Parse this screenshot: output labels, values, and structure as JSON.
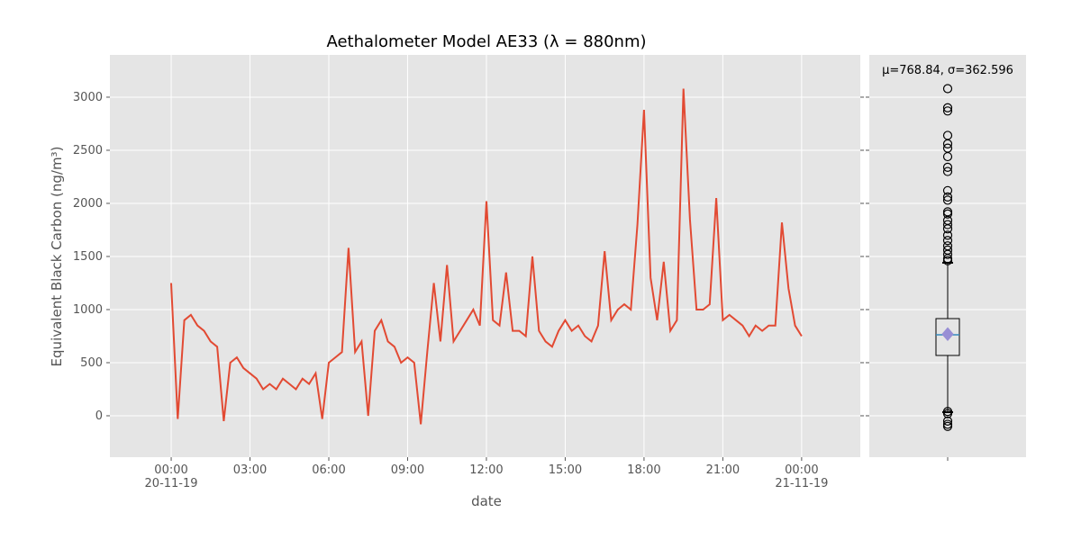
{
  "chart_data": [
    {
      "type": "line",
      "title": "Aethalometer Model AE33 (λ = 880nm)",
      "xlabel": "date",
      "ylabel": "Equivalent Black Carbon (ng/m³)",
      "color": "#e24a33",
      "grid": true,
      "xlim": [
        "2019-11-19 21:40",
        "2019-11-21 02:14"
      ],
      "xticks": [
        {
          "value": "2019-11-20 00:00",
          "label": "00:00\n20-11-19"
        },
        {
          "value": "2019-11-20 03:00",
          "label": "03:00"
        },
        {
          "value": "2019-11-20 06:00",
          "label": "06:00"
        },
        {
          "value": "2019-11-20 09:00",
          "label": "09:00"
        },
        {
          "value": "2019-11-20 12:00",
          "label": "12:00"
        },
        {
          "value": "2019-11-20 15:00",
          "label": "15:00"
        },
        {
          "value": "2019-11-20 18:00",
          "label": "18:00"
        },
        {
          "value": "2019-11-20 21:00",
          "label": "21:00"
        },
        {
          "value": "2019-11-21 00:00",
          "label": "00:00\n21-11-19"
        }
      ],
      "ylim": [
        -390,
        3398
      ],
      "yticks": [
        0,
        500,
        1000,
        1500,
        2000,
        2500,
        3000
      ],
      "x": [
        "2019-11-20 00:00",
        "2019-11-20 00:15",
        "2019-11-20 00:30",
        "2019-11-20 00:45",
        "2019-11-20 01:00",
        "2019-11-20 01:15",
        "2019-11-20 01:30",
        "2019-11-20 01:45",
        "2019-11-20 02:00",
        "2019-11-20 02:15",
        "2019-11-20 02:30",
        "2019-11-20 02:45",
        "2019-11-20 03:00",
        "2019-11-20 03:15",
        "2019-11-20 03:30",
        "2019-11-20 03:45",
        "2019-11-20 04:00",
        "2019-11-20 04:15",
        "2019-11-20 04:30",
        "2019-11-20 04:45",
        "2019-11-20 05:00",
        "2019-11-20 05:15",
        "2019-11-20 05:30",
        "2019-11-20 05:45",
        "2019-11-20 06:00",
        "2019-11-20 06:15",
        "2019-11-20 06:30",
        "2019-11-20 06:45",
        "2019-11-20 07:00",
        "2019-11-20 07:15",
        "2019-11-20 07:30",
        "2019-11-20 07:45",
        "2019-11-20 08:00",
        "2019-11-20 08:15",
        "2019-11-20 08:30",
        "2019-11-20 08:45",
        "2019-11-20 09:00",
        "2019-11-20 09:15",
        "2019-11-20 09:30",
        "2019-11-20 09:45",
        "2019-11-20 10:00",
        "2019-11-20 10:15",
        "2019-11-20 10:30",
        "2019-11-20 10:45",
        "2019-11-20 11:00",
        "2019-11-20 11:15",
        "2019-11-20 11:30",
        "2019-11-20 11:45",
        "2019-11-20 12:00",
        "2019-11-20 12:15",
        "2019-11-20 12:30",
        "2019-11-20 12:45",
        "2019-11-20 13:00",
        "2019-11-20 13:15",
        "2019-11-20 13:30",
        "2019-11-20 13:45",
        "2019-11-20 14:00",
        "2019-11-20 14:15",
        "2019-11-20 14:30",
        "2019-11-20 14:45",
        "2019-11-20 15:00",
        "2019-11-20 15:15",
        "2019-11-20 15:30",
        "2019-11-20 15:45",
        "2019-11-20 16:00",
        "2019-11-20 16:15",
        "2019-11-20 16:30",
        "2019-11-20 16:45",
        "2019-11-20 17:00",
        "2019-11-20 17:15",
        "2019-11-20 17:30",
        "2019-11-20 17:45",
        "2019-11-20 18:00",
        "2019-11-20 18:15",
        "2019-11-20 18:30",
        "2019-11-20 18:45",
        "2019-11-20 19:00",
        "2019-11-20 19:15",
        "2019-11-20 19:30",
        "2019-11-20 19:45",
        "2019-11-20 20:00",
        "2019-11-20 20:15",
        "2019-11-20 20:30",
        "2019-11-20 20:45",
        "2019-11-20 21:00",
        "2019-11-20 21:15",
        "2019-11-20 21:30",
        "2019-11-20 21:45",
        "2019-11-20 22:00",
        "2019-11-20 22:15",
        "2019-11-20 22:30",
        "2019-11-20 22:45",
        "2019-11-20 23:00",
        "2019-11-20 23:15",
        "2019-11-20 23:30",
        "2019-11-20 23:45",
        "2019-11-21 00:00"
      ],
      "values": [
        1250,
        -30,
        900,
        950,
        850,
        800,
        700,
        650,
        -50,
        500,
        550,
        450,
        400,
        350,
        250,
        300,
        250,
        350,
        300,
        250,
        350,
        300,
        400,
        -30,
        500,
        550,
        600,
        1580,
        600,
        700,
        0,
        800,
        900,
        700,
        650,
        500,
        550,
        500,
        -80,
        600,
        1250,
        700,
        1420,
        700,
        800,
        900,
        1000,
        850,
        2020,
        900,
        850,
        1350,
        800,
        800,
        750,
        1500,
        800,
        700,
        650,
        800,
        900,
        800,
        850,
        750,
        700,
        850,
        1550,
        900,
        1000,
        1050,
        1000,
        1800,
        2880,
        1300,
        900,
        1450,
        800,
        900,
        3080,
        1850,
        1000,
        1000,
        1050,
        2050,
        900,
        950,
        900,
        850,
        750,
        850,
        800,
        850,
        850,
        1820,
        1200,
        850,
        750
      ]
    },
    {
      "type": "box",
      "annotation": "μ=768.84, σ=362.596",
      "q1": 568,
      "median": 763,
      "q3": 915,
      "whisker_low": 34,
      "whisker_high": 1441,
      "mean": 768.84,
      "fliers": [
        3080,
        2900,
        2870,
        2640,
        2560,
        2520,
        2440,
        2340,
        2300,
        2120,
        2060,
        2030,
        1920,
        1900,
        1840,
        1800,
        1760,
        1700,
        1650,
        1600,
        1560,
        1520,
        1480,
        1460,
        40,
        20,
        -50,
        -80,
        -100
      ]
    }
  ]
}
